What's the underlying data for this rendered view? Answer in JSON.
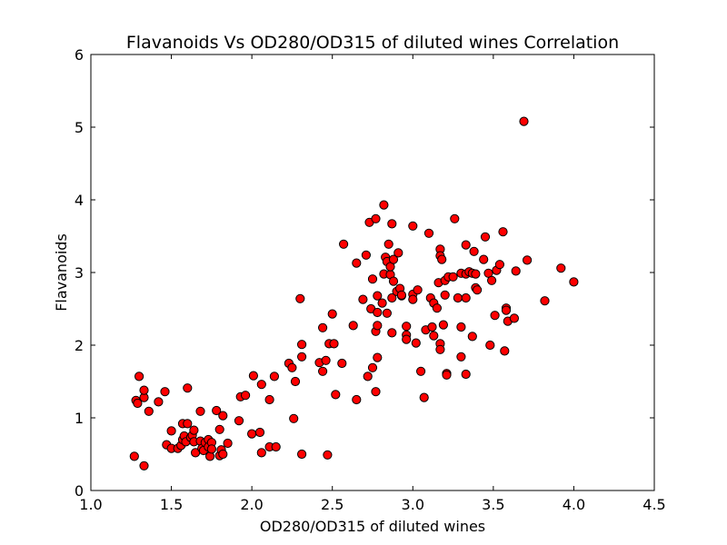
{
  "chart_data": {
    "type": "scatter",
    "title": "Flavanoids Vs OD280/OD315 of diluted wines Correlation",
    "xlabel": "OD280/OD315 of diluted wines",
    "ylabel": "Flavanoids",
    "xlim": [
      1.0,
      4.5
    ],
    "ylim": [
      0,
      6
    ],
    "xticks": [
      1.0,
      1.5,
      2.0,
      2.5,
      3.0,
      3.5,
      4.0,
      4.5
    ],
    "xtick_labels": [
      "1.0",
      "1.5",
      "2.0",
      "2.5",
      "3.0",
      "3.5",
      "4.0",
      "4.5"
    ],
    "yticks": [
      0,
      1,
      2,
      3,
      4,
      5,
      6
    ],
    "ytick_labels": [
      "0",
      "1",
      "2",
      "3",
      "4",
      "5",
      "6"
    ],
    "grid": false,
    "legend": "none",
    "marker_color": "#ff0000",
    "marker_edge_color": "#000000",
    "points": [
      [
        1.27,
        0.47
      ],
      [
        1.28,
        1.24
      ],
      [
        1.29,
        1.2
      ],
      [
        1.3,
        1.57
      ],
      [
        1.33,
        1.28
      ],
      [
        1.33,
        1.38
      ],
      [
        1.33,
        0.34
      ],
      [
        1.36,
        1.09
      ],
      [
        1.42,
        1.22
      ],
      [
        1.46,
        1.36
      ],
      [
        1.47,
        0.63
      ],
      [
        1.5,
        0.82
      ],
      [
        1.5,
        0.58
      ],
      [
        1.54,
        0.58
      ],
      [
        1.56,
        0.62
      ],
      [
        1.57,
        0.92
      ],
      [
        1.57,
        0.7
      ],
      [
        1.58,
        0.75
      ],
      [
        1.59,
        0.67
      ],
      [
        1.6,
        0.92
      ],
      [
        1.6,
        1.41
      ],
      [
        1.62,
        0.73
      ],
      [
        1.63,
        0.76
      ],
      [
        1.64,
        0.83
      ],
      [
        1.64,
        0.67
      ],
      [
        1.65,
        0.52
      ],
      [
        1.68,
        1.09
      ],
      [
        1.68,
        0.68
      ],
      [
        1.69,
        0.58
      ],
      [
        1.7,
        0.55
      ],
      [
        1.71,
        0.66
      ],
      [
        1.73,
        0.7
      ],
      [
        1.73,
        0.6
      ],
      [
        1.74,
        0.47
      ],
      [
        1.75,
        0.66
      ],
      [
        1.75,
        0.57
      ],
      [
        1.78,
        1.1
      ],
      [
        1.8,
        0.84
      ],
      [
        1.8,
        0.48
      ],
      [
        1.81,
        0.56
      ],
      [
        1.82,
        1.03
      ],
      [
        1.82,
        0.5
      ],
      [
        1.85,
        0.65
      ],
      [
        1.92,
        0.96
      ],
      [
        1.93,
        1.29
      ],
      [
        1.96,
        1.31
      ],
      [
        2.0,
        0.78
      ],
      [
        2.01,
        1.58
      ],
      [
        2.05,
        0.8
      ],
      [
        2.06,
        1.46
      ],
      [
        2.06,
        0.52
      ],
      [
        2.11,
        1.25
      ],
      [
        2.11,
        0.6
      ],
      [
        2.14,
        1.57
      ],
      [
        2.15,
        0.6
      ],
      [
        2.23,
        1.75
      ],
      [
        2.25,
        1.69
      ],
      [
        2.26,
        0.99
      ],
      [
        2.27,
        1.5
      ],
      [
        2.3,
        2.64
      ],
      [
        2.31,
        2.01
      ],
      [
        2.31,
        1.84
      ],
      [
        2.31,
        0.5
      ],
      [
        2.42,
        1.76
      ],
      [
        2.44,
        2.24
      ],
      [
        2.44,
        1.64
      ],
      [
        2.46,
        1.79
      ],
      [
        2.47,
        0.49
      ],
      [
        2.48,
        2.02
      ],
      [
        2.5,
        2.43
      ],
      [
        2.51,
        2.02
      ],
      [
        2.52,
        1.32
      ],
      [
        2.56,
        1.75
      ],
      [
        2.57,
        3.39
      ],
      [
        2.63,
        2.27
      ],
      [
        2.65,
        3.13
      ],
      [
        2.65,
        1.25
      ],
      [
        2.69,
        2.63
      ],
      [
        2.71,
        3.24
      ],
      [
        2.72,
        1.57
      ],
      [
        2.73,
        3.69
      ],
      [
        2.74,
        2.5
      ],
      [
        2.75,
        2.91
      ],
      [
        2.75,
        1.69
      ],
      [
        2.77,
        3.74
      ],
      [
        2.77,
        2.19
      ],
      [
        2.77,
        1.36
      ],
      [
        2.78,
        2.68
      ],
      [
        2.78,
        2.45
      ],
      [
        2.78,
        2.27
      ],
      [
        2.78,
        1.83
      ],
      [
        2.81,
        2.58
      ],
      [
        2.82,
        3.93
      ],
      [
        2.82,
        2.98
      ],
      [
        2.83,
        3.21
      ],
      [
        2.84,
        3.15
      ],
      [
        2.84,
        2.44
      ],
      [
        2.85,
        3.39
      ],
      [
        2.86,
        2.97
      ],
      [
        2.86,
        3.08
      ],
      [
        2.87,
        3.67
      ],
      [
        2.87,
        2.65
      ],
      [
        2.87,
        2.17
      ],
      [
        2.88,
        3.18
      ],
      [
        2.88,
        2.88
      ],
      [
        2.9,
        2.74
      ],
      [
        2.91,
        3.27
      ],
      [
        2.92,
        2.78
      ],
      [
        2.93,
        2.68
      ],
      [
        2.93,
        2.69
      ],
      [
        2.96,
        2.26
      ],
      [
        2.96,
        2.14
      ],
      [
        2.96,
        2.08
      ],
      [
        3.0,
        3.64
      ],
      [
        3.0,
        2.7
      ],
      [
        3.0,
        2.63
      ],
      [
        3.02,
        2.03
      ],
      [
        3.03,
        2.76
      ],
      [
        3.05,
        1.64
      ],
      [
        3.07,
        1.28
      ],
      [
        3.08,
        2.21
      ],
      [
        3.1,
        3.54
      ],
      [
        3.11,
        2.65
      ],
      [
        3.12,
        2.25
      ],
      [
        3.13,
        2.58
      ],
      [
        3.13,
        2.13
      ],
      [
        3.15,
        2.51
      ],
      [
        3.16,
        2.86
      ],
      [
        3.17,
        3.32
      ],
      [
        3.17,
        3.23
      ],
      [
        3.17,
        2.02
      ],
      [
        3.17,
        1.94
      ],
      [
        3.18,
        3.18
      ],
      [
        3.19,
        2.28
      ],
      [
        3.2,
        2.89
      ],
      [
        3.2,
        2.69
      ],
      [
        3.21,
        1.61
      ],
      [
        3.21,
        1.59
      ],
      [
        3.22,
        2.94
      ],
      [
        3.25,
        2.94
      ],
      [
        3.26,
        3.74
      ],
      [
        3.28,
        2.65
      ],
      [
        3.3,
        2.99
      ],
      [
        3.3,
        2.25
      ],
      [
        3.3,
        1.84
      ],
      [
        3.33,
        3.38
      ],
      [
        3.33,
        2.98
      ],
      [
        3.33,
        2.65
      ],
      [
        3.33,
        1.6
      ],
      [
        3.35,
        3.01
      ],
      [
        3.37,
        2.99
      ],
      [
        3.37,
        2.12
      ],
      [
        3.38,
        3.29
      ],
      [
        3.39,
        2.98
      ],
      [
        3.39,
        2.79
      ],
      [
        3.4,
        2.76
      ],
      [
        3.44,
        3.18
      ],
      [
        3.45,
        3.49
      ],
      [
        3.47,
        2.99
      ],
      [
        3.48,
        2.0
      ],
      [
        3.49,
        2.89
      ],
      [
        3.51,
        2.41
      ],
      [
        3.52,
        3.03
      ],
      [
        3.54,
        3.11
      ],
      [
        3.56,
        3.56
      ],
      [
        3.57,
        1.92
      ],
      [
        3.58,
        2.51
      ],
      [
        3.58,
        2.48
      ],
      [
        3.59,
        2.33
      ],
      [
        3.63,
        2.37
      ],
      [
        3.64,
        3.02
      ],
      [
        3.69,
        5.08
      ],
      [
        3.71,
        3.17
      ],
      [
        3.82,
        2.61
      ],
      [
        3.92,
        3.06
      ],
      [
        4.0,
        2.87
      ]
    ]
  }
}
